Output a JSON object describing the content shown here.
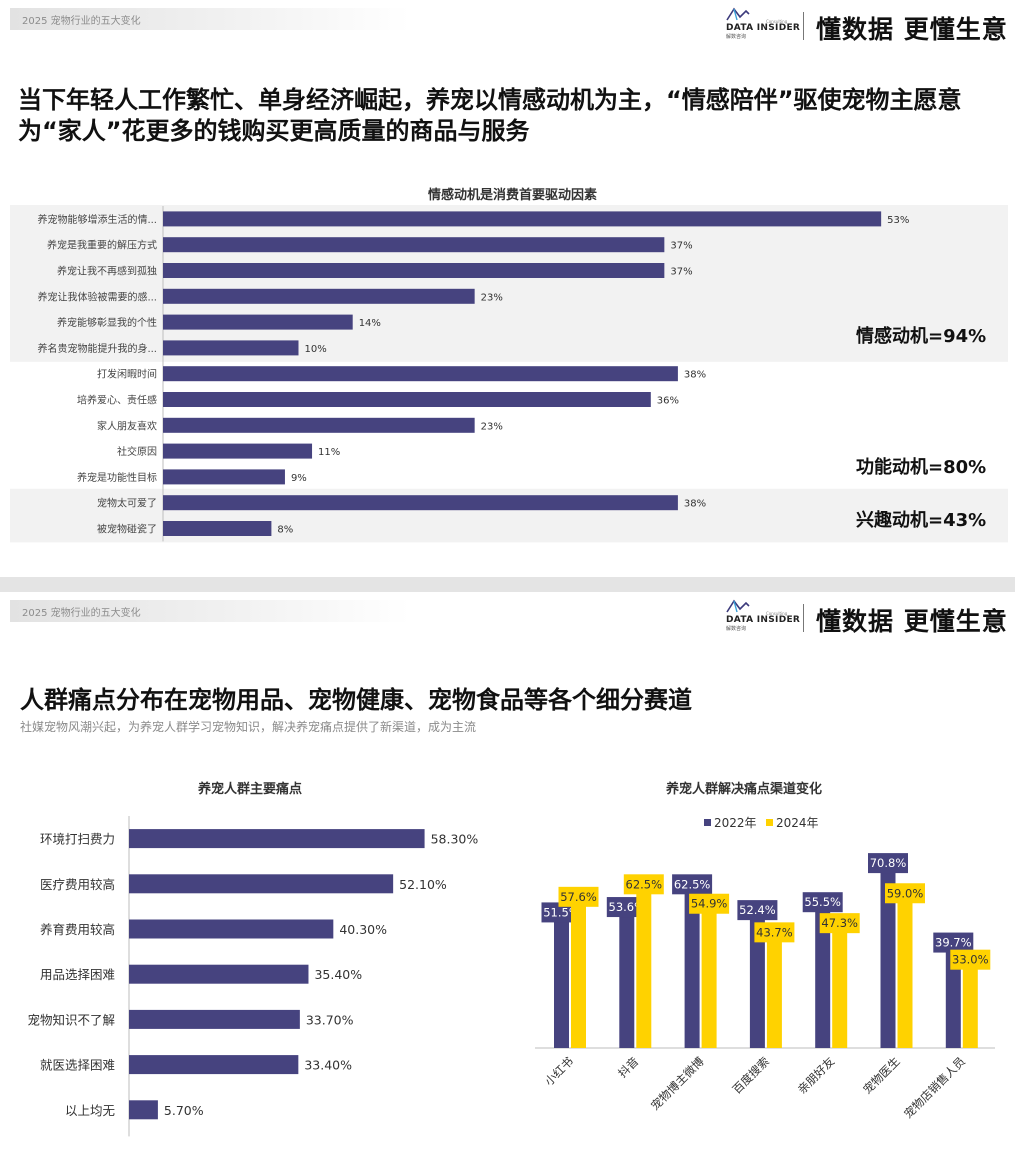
{
  "header": {
    "tag": "2025  宠物行业的五大变化",
    "logo_text": "DATA INSIDER",
    "logo_sub": "解数咨询",
    "logo_consulting": "Consulting",
    "slogan": "懂数据 更懂生意"
  },
  "slide1": {
    "title": "当下年轻人工作繁忙、单身经济崛起，养宠以情感动机为主，“情感陪伴”驱使宠物主愿意为“家人”花更多的钱购买更高质量的商品与服务",
    "groups": [
      {
        "label": "情感动机=94%",
        "shaded": true
      },
      {
        "label": "功能动机=80%",
        "shaded": false
      },
      {
        "label": "兴趣动机=43%",
        "shaded": true
      }
    ]
  },
  "slide2": {
    "title": "人群痛点分布在宠物用品、宠物健康、宠物食品等各个细分赛道",
    "subtitle": "社媒宠物风潮兴起，为养宠人群学习宠物知识，解决养宠痛点提供了新渠道，成为主流"
  },
  "colors": {
    "navy": "#46437f",
    "yellow": "#ffd200",
    "shade": "#f2f2f2"
  },
  "chart_data": [
    {
      "type": "bar",
      "orientation": "horizontal",
      "title": "情感动机是消费首要驱动因素",
      "categories": [
        "养宠物能够增添生活的情...",
        "养宠是我重要的解压方式",
        "养宠让我不再感到孤独",
        "养宠让我体验被需要的感...",
        "养宠能够彰显我的个性",
        "养名贵宠物能提升我的身...",
        "打发闲暇时间",
        "培养爱心、责任感",
        "家人朋友喜欢",
        "社交原因",
        "养宠是功能性目标",
        "宠物太可爱了",
        "被宠物碰瓷了"
      ],
      "values": [
        53,
        37,
        37,
        23,
        14,
        10,
        38,
        36,
        23,
        11,
        9,
        38,
        8
      ],
      "value_labels": [
        "53%",
        "37%",
        "37%",
        "23%",
        "14%",
        "10%",
        "38%",
        "36%",
        "23%",
        "11%",
        "9%",
        "38%",
        "8%"
      ],
      "xlim": [
        0,
        60
      ],
      "grid": false
    },
    {
      "type": "bar",
      "orientation": "horizontal",
      "title": "养宠人群主要痛点",
      "categories": [
        "环境打扫费力",
        "医疗费用较高",
        "养育费用较高",
        "用品选择困难",
        "宠物知识不了解",
        "就医选择困难",
        "以上均无"
      ],
      "values": [
        58.3,
        52.1,
        40.3,
        35.4,
        33.7,
        33.4,
        5.7
      ],
      "value_labels": [
        "58.30%",
        "52.10%",
        "40.30%",
        "35.40%",
        "33.70%",
        "33.40%",
        "5.70%"
      ],
      "xlim": [
        0,
        70
      ],
      "grid": false
    },
    {
      "type": "bar",
      "title": "养宠人群解决痛点渠道变化",
      "categories": [
        "小红书",
        "抖音",
        "宠物博主微博",
        "百度搜索",
        "亲朋好友",
        "宠物医生",
        "宠物店销售人员"
      ],
      "series": [
        {
          "name": "2022年",
          "values": [
            51.5,
            53.6,
            62.5,
            52.4,
            55.5,
            70.8,
            39.7
          ],
          "labels": [
            "51.5%",
            "53.6%",
            "62.5%",
            "52.4%",
            "55.5%",
            "70.8%",
            "39.7%"
          ]
        },
        {
          "name": "2024年",
          "values": [
            57.6,
            62.5,
            54.9,
            43.7,
            47.3,
            59.0,
            33.0
          ],
          "labels": [
            "57.6%",
            "62.5%",
            "54.9%",
            "43.7%",
            "47.3%",
            "59.0%",
            "33.0%"
          ]
        }
      ],
      "ylim": [
        0,
        80
      ],
      "legend": "top",
      "grid": false
    }
  ]
}
